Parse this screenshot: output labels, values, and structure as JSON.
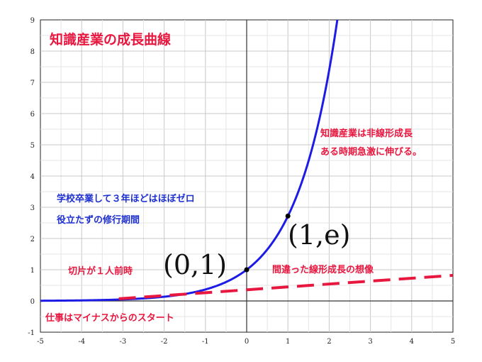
{
  "chart_data": {
    "type": "line",
    "title": "知識産業の成長曲線",
    "xlabel": "",
    "ylabel": "",
    "xlim": [
      -5,
      5
    ],
    "ylim": [
      -1,
      9
    ],
    "grid": true,
    "x_ticks": [
      "-5",
      "-4",
      "-3",
      "-2",
      "-1",
      "0",
      "1",
      "2",
      "3",
      "4",
      "5"
    ],
    "y_ticks": [
      "-1",
      "0",
      "1",
      "2",
      "3",
      "4",
      "5",
      "6",
      "7",
      "8",
      "9"
    ],
    "series": [
      {
        "function": "exp(x)",
        "color": "#1c1ce6",
        "style": "solid",
        "x": [
          -5,
          -4,
          -3,
          -2,
          -1,
          0,
          0.5,
          1,
          1.5,
          2,
          2.2
        ],
        "y": [
          0.007,
          0.018,
          0.05,
          0.135,
          0.368,
          1,
          1.649,
          2.718,
          4.482,
          7.389,
          9.025
        ]
      },
      {
        "color": "#e8173f",
        "style": "dashed",
        "x": [
          -3.1,
          5
        ],
        "y": [
          0.07,
          0.82
        ]
      }
    ],
    "points": [
      {
        "x": 0,
        "y": 1,
        "label": "(0,1)"
      },
      {
        "x": 1,
        "y": 2.718,
        "label": "(1,e)"
      }
    ],
    "annotations": [
      {
        "id": "nonlinear_1",
        "text": "知識産業は非線形成長",
        "color": "#e8173f"
      },
      {
        "id": "nonlinear_2",
        "text": "ある時期急激に伸びる。",
        "color": "#e8173f"
      },
      {
        "id": "training_1",
        "text": "学校卒業して３年ほどはほぼゼロ",
        "color": "#1d2fd0"
      },
      {
        "id": "training_2",
        "text": "役立たずの修行期間",
        "color": "#1d2fd0"
      },
      {
        "id": "fullfledged",
        "text": "切片が１人前時",
        "color": "#e8173f"
      },
      {
        "id": "wrong_linear",
        "text": "間違った線形成長の想像",
        "color": "#e8173f"
      },
      {
        "id": "start",
        "text": "仕事はマイナスからのスタート",
        "color": "#e8173f"
      }
    ]
  }
}
